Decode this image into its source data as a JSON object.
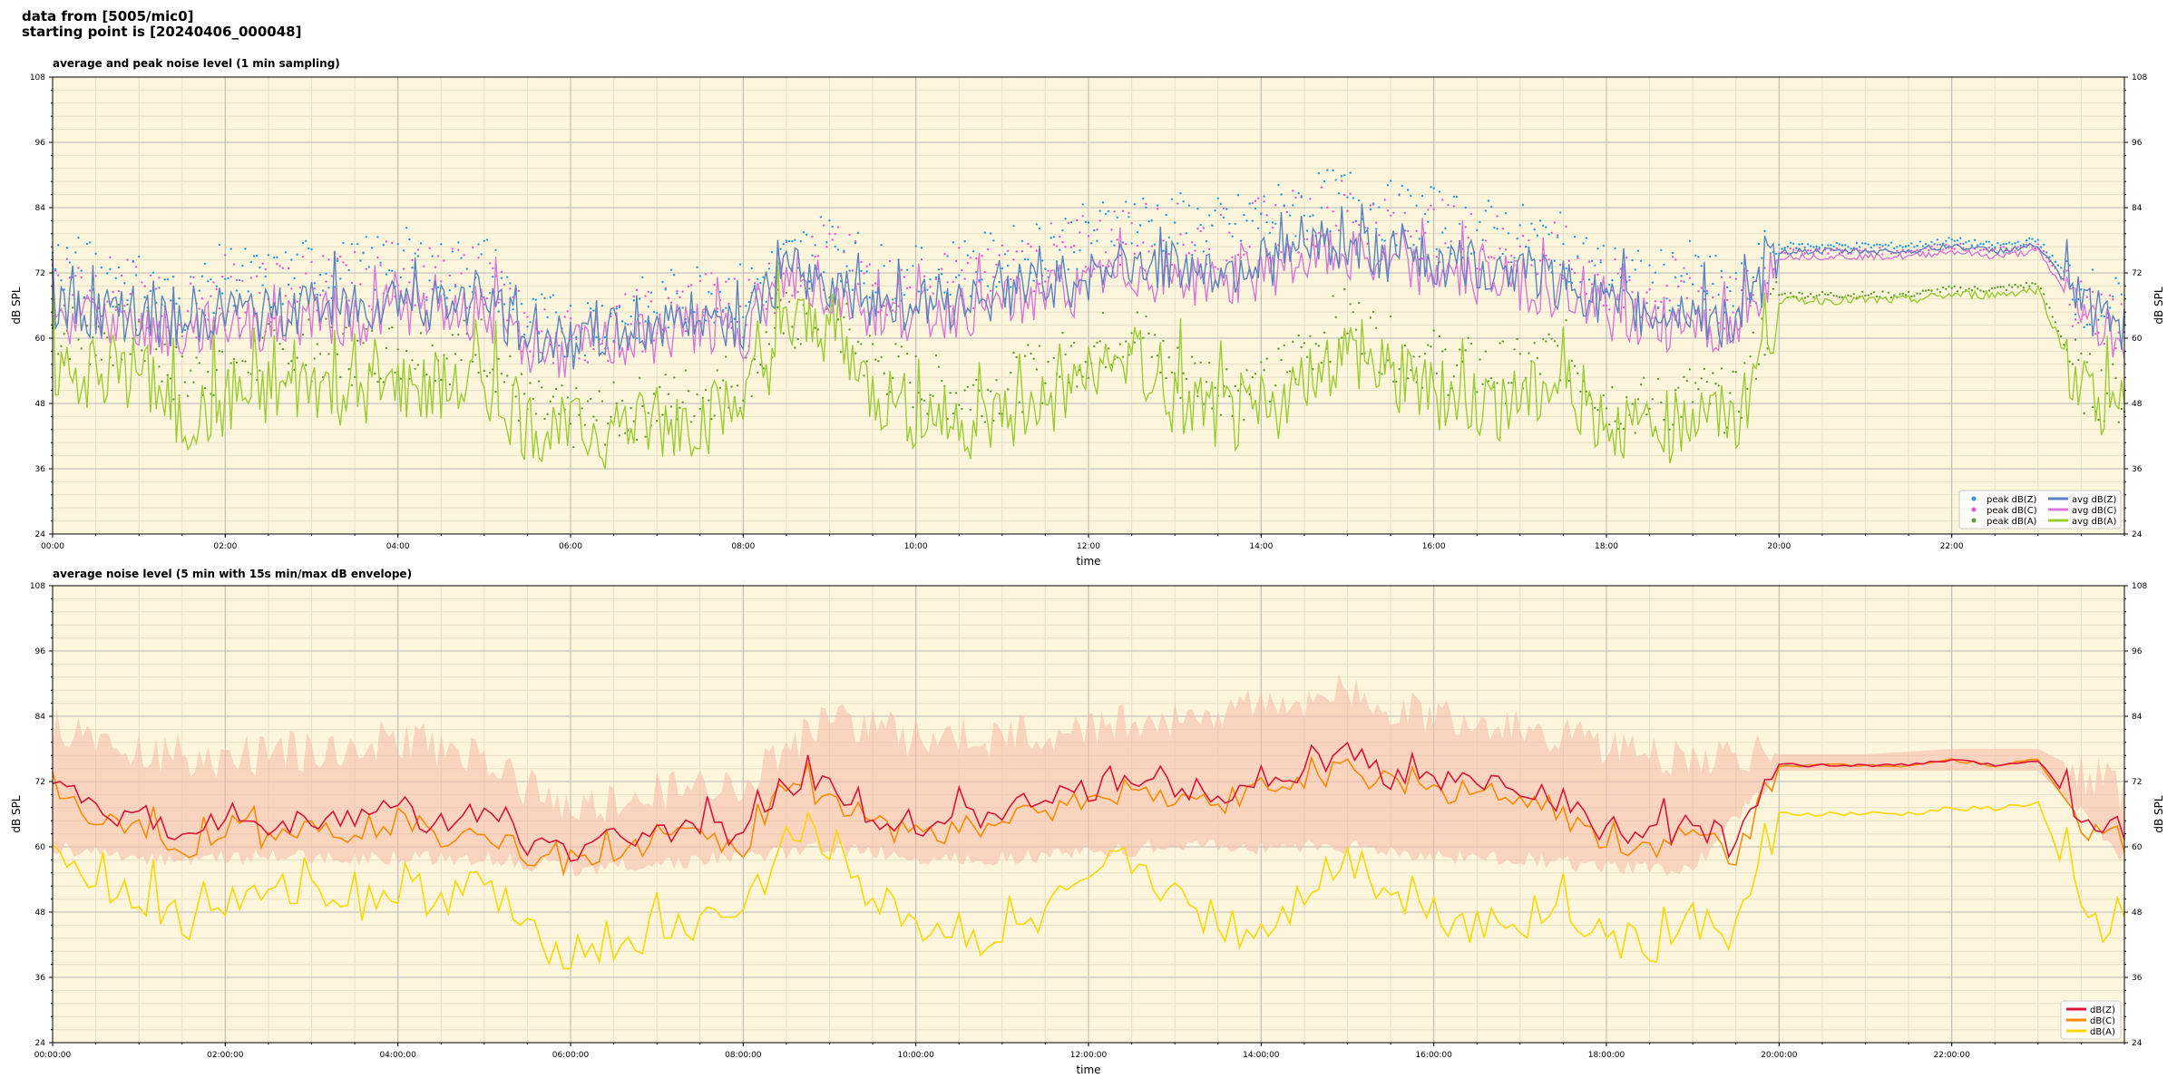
{
  "header": {
    "line1": "data from [5005/mic0]",
    "line2": "starting point is [20240406_000048]"
  },
  "colors": {
    "plot_bg": "#fdf6dc",
    "grid_major": "#b8b8b8",
    "grid_minor": "#e7dfc6",
    "peak_z": "#1f9de0",
    "peak_c": "#f050d8",
    "peak_a": "#5c9e30",
    "avg_z": "#5a84c0",
    "avg_c": "#d878d8",
    "avg_a": "#9acd32",
    "env": "#f6b8a8",
    "dbz": "#dc143c",
    "dbc": "#ff8c00",
    "dba": "#ffd700"
  },
  "chart_data": [
    {
      "type": "line",
      "title": "average and peak noise level (1 min sampling)",
      "xlabel": "time",
      "ylabel": "dB SPL",
      "xlim": [
        0,
        24
      ],
      "ylim": [
        24,
        108
      ],
      "x_ticks": [
        "00:00",
        "02:00",
        "04:00",
        "06:00",
        "08:00",
        "10:00",
        "12:00",
        "14:00",
        "16:00",
        "18:00",
        "20:00",
        "22:00"
      ],
      "y_ticks": [
        "24",
        "36",
        "48",
        "60",
        "72",
        "84",
        "96",
        "108"
      ],
      "grid": true,
      "legend_position": "lower-right",
      "legend": [
        "peak dB(Z)",
        "peak dB(C)",
        "peak dB(A)",
        "avg dB(Z)",
        "avg dB(C)",
        "avg dB(A)"
      ],
      "series": [
        {
          "name": "avg dB(Z)",
          "x": [
            0,
            0.5,
            1,
            1.5,
            2,
            2.5,
            3,
            3.5,
            4,
            4.5,
            5,
            5.5,
            6,
            6.5,
            7,
            7.5,
            8,
            8.5,
            9,
            9.5,
            10,
            10.5,
            11,
            11.5,
            12,
            12.5,
            13,
            13.5,
            14,
            14.5,
            15,
            15.5,
            16,
            16.5,
            17,
            17.5,
            18,
            18.5,
            19,
            19.5,
            20,
            20.5,
            21,
            21.5,
            22,
            22.5,
            23,
            23.5,
            24
          ],
          "values": [
            66,
            65,
            64,
            62,
            65,
            64,
            66,
            65,
            68,
            66,
            67,
            60,
            59,
            61,
            62,
            64,
            63,
            72,
            70,
            67,
            66,
            67,
            68,
            70,
            71,
            74,
            73,
            72,
            74,
            76,
            77,
            75,
            74,
            73,
            72,
            70,
            66,
            64,
            65,
            62,
            76,
            76,
            76,
            76,
            77,
            76,
            77,
            66,
            62
          ]
        },
        {
          "name": "avg dB(C)",
          "x": [
            0,
            0.5,
            1,
            1.5,
            2,
            2.5,
            3,
            3.5,
            4,
            4.5,
            5,
            5.5,
            6,
            6.5,
            7,
            7.5,
            8,
            8.5,
            9,
            9.5,
            10,
            10.5,
            11,
            11.5,
            12,
            12.5,
            13,
            13.5,
            14,
            14.5,
            15,
            15.5,
            16,
            16.5,
            17,
            17.5,
            18,
            18.5,
            19,
            19.5,
            20,
            20.5,
            21,
            21.5,
            22,
            22.5,
            23,
            23.5,
            24
          ],
          "values": [
            64,
            63,
            62,
            60,
            63,
            62,
            64,
            63,
            66,
            64,
            65,
            58,
            57,
            59,
            60,
            62,
            61,
            71,
            68,
            65,
            64,
            65,
            66,
            68,
            69,
            72,
            71,
            70,
            72,
            74,
            75,
            73,
            72,
            71,
            70,
            68,
            64,
            62,
            63,
            60,
            75,
            75,
            75,
            75,
            76,
            75,
            76,
            64,
            60
          ]
        },
        {
          "name": "avg dB(A)",
          "x": [
            0,
            0.5,
            1,
            1.5,
            2,
            2.5,
            3,
            3.5,
            4,
            4.5,
            5,
            5.5,
            6,
            6.5,
            7,
            7.5,
            8,
            8.5,
            9,
            9.5,
            10,
            10.5,
            11,
            11.5,
            12,
            12.5,
            13,
            13.5,
            14,
            14.5,
            15,
            15.5,
            16,
            16.5,
            17,
            17.5,
            18,
            18.5,
            19,
            19.5,
            20,
            20.5,
            21,
            21.5,
            22,
            22.5,
            23,
            23.5,
            24
          ],
          "values": [
            55,
            52,
            54,
            44,
            48,
            50,
            52,
            50,
            51,
            50,
            52,
            44,
            42,
            43,
            44,
            45,
            48,
            62,
            62,
            50,
            46,
            44,
            45,
            48,
            52,
            56,
            48,
            46,
            44,
            52,
            58,
            52,
            50,
            48,
            48,
            52,
            44,
            42,
            46,
            44,
            67,
            67,
            67,
            67,
            68,
            68,
            69,
            50,
            46
          ]
        },
        {
          "name": "peak dB(Z)",
          "x": [
            0,
            0.5,
            1,
            1.5,
            2,
            2.5,
            3,
            3.5,
            4,
            4.5,
            5,
            5.5,
            6,
            6.5,
            7,
            7.5,
            8,
            8.5,
            9,
            9.5,
            10,
            10.5,
            11,
            11.5,
            12,
            12.5,
            13,
            13.5,
            14,
            14.5,
            15,
            15.5,
            16,
            16.5,
            17,
            17.5,
            18,
            18.5,
            19,
            19.5,
            20,
            20.5,
            21,
            21.5,
            22,
            22.5,
            23,
            23.5,
            24
          ],
          "values": [
            74,
            72,
            70,
            66,
            72,
            70,
            73,
            72,
            75,
            72,
            74,
            63,
            62,
            64,
            66,
            69,
            68,
            74,
            78,
            72,
            71,
            73,
            74,
            77,
            79,
            82,
            81,
            80,
            82,
            84,
            86,
            83,
            82,
            80,
            79,
            77,
            72,
            70,
            72,
            67,
            77,
            77,
            77,
            77,
            78,
            77,
            78,
            68,
            65
          ]
        },
        {
          "name": "peak dB(C)",
          "x": [
            0,
            0.5,
            1,
            1.5,
            2,
            2.5,
            3,
            3.5,
            4,
            4.5,
            5,
            5.5,
            6,
            6.5,
            7,
            7.5,
            8,
            8.5,
            9,
            9.5,
            10,
            10.5,
            11,
            11.5,
            12,
            12.5,
            13,
            13.5,
            14,
            14.5,
            15,
            15.5,
            16,
            16.5,
            17,
            17.5,
            18,
            18.5,
            19,
            19.5,
            20,
            20.5,
            21,
            21.5,
            22,
            22.5,
            23,
            23.5,
            24
          ],
          "values": [
            72,
            70,
            68,
            64,
            70,
            68,
            71,
            70,
            73,
            70,
            72,
            61,
            60,
            62,
            64,
            67,
            66,
            72,
            76,
            70,
            69,
            71,
            72,
            75,
            77,
            80,
            79,
            78,
            80,
            82,
            84,
            81,
            80,
            78,
            77,
            75,
            70,
            68,
            70,
            65,
            76,
            76,
            76,
            76,
            77,
            76,
            77,
            66,
            63
          ]
        },
        {
          "name": "peak dB(A)",
          "x": [
            0,
            0.5,
            1,
            1.5,
            2,
            2.5,
            3,
            3.5,
            4,
            4.5,
            5,
            5.5,
            6,
            6.5,
            7,
            7.5,
            8,
            8.5,
            9,
            9.5,
            10,
            10.5,
            11,
            11.5,
            12,
            12.5,
            13,
            13.5,
            14,
            14.5,
            15,
            15.5,
            16,
            16.5,
            17,
            17.5,
            18,
            18.5,
            19,
            19.5,
            20,
            20.5,
            21,
            21.5,
            22,
            22.5,
            23,
            23.5,
            24
          ],
          "values": [
            62,
            60,
            61,
            52,
            56,
            57,
            58,
            57,
            58,
            57,
            59,
            47,
            45,
            46,
            48,
            50,
            53,
            63,
            64,
            56,
            52,
            50,
            51,
            54,
            58,
            62,
            54,
            52,
            50,
            58,
            64,
            58,
            56,
            54,
            54,
            58,
            49,
            47,
            50,
            48,
            68,
            68,
            68,
            68,
            69,
            69,
            70,
            52,
            49
          ]
        }
      ]
    },
    {
      "type": "line",
      "title": "average noise level (5 min with 15s min/max dB envelope)",
      "xlabel": "time",
      "ylabel": "dB SPL",
      "xlim": [
        0,
        24
      ],
      "ylim": [
        24,
        108
      ],
      "x_ticks": [
        "00:00:00",
        "02:00:00",
        "04:00:00",
        "06:00:00",
        "08:00:00",
        "10:00:00",
        "12:00:00",
        "14:00:00",
        "16:00:00",
        "18:00:00",
        "20:00:00",
        "22:00:00"
      ],
      "y_ticks": [
        "24",
        "36",
        "48",
        "60",
        "72",
        "84",
        "96",
        "108"
      ],
      "grid": true,
      "legend_position": "lower-right",
      "legend": [
        "dB(Z)",
        "dB(C)",
        "dB(A)"
      ],
      "series": [
        {
          "name": "dB(Z)",
          "x": [
            0,
            0.5,
            1,
            1.5,
            2,
            2.5,
            3,
            3.5,
            4,
            4.5,
            5,
            5.5,
            6,
            6.5,
            7,
            7.5,
            8,
            8.5,
            9,
            9.5,
            10,
            10.5,
            11,
            11.5,
            12,
            12.5,
            13,
            13.5,
            14,
            14.5,
            15,
            15.5,
            16,
            16.5,
            17,
            17.5,
            18,
            18.5,
            19,
            19.5,
            20,
            20.5,
            21,
            21.5,
            22,
            22.5,
            23,
            23.5,
            24
          ],
          "values": [
            72,
            66,
            66,
            61,
            66,
            64,
            66,
            65,
            67,
            64,
            66,
            60,
            59,
            61,
            63,
            64,
            62,
            72,
            72,
            66,
            64,
            65,
            66,
            69,
            70,
            73,
            71,
            70,
            72,
            74,
            77,
            73,
            72,
            72,
            71,
            68,
            63,
            62,
            64,
            60,
            75,
            75,
            75,
            75,
            76,
            75,
            76,
            66,
            62
          ]
        },
        {
          "name": "dB(C)",
          "x": [
            0,
            0.5,
            1,
            1.5,
            2,
            2.5,
            3,
            3.5,
            4,
            4.5,
            5,
            5.5,
            6,
            6.5,
            7,
            7.5,
            8,
            8.5,
            9,
            9.5,
            10,
            10.5,
            11,
            11.5,
            12,
            12.5,
            13,
            13.5,
            14,
            14.5,
            15,
            15.5,
            16,
            16.5,
            17,
            17.5,
            18,
            18.5,
            19,
            19.5,
            20,
            20.5,
            21,
            21.5,
            22,
            22.5,
            23,
            23.5,
            24
          ],
          "values": [
            70,
            64,
            64,
            59,
            64,
            62,
            64,
            63,
            65,
            62,
            64,
            58,
            57,
            59,
            61,
            62,
            60,
            71,
            70,
            64,
            62,
            63,
            64,
            67,
            68,
            71,
            69,
            68,
            70,
            72,
            75,
            71,
            70,
            70,
            69,
            66,
            61,
            60,
            62,
            58,
            75,
            75,
            75,
            75,
            76,
            75,
            76,
            64,
            60
          ]
        },
        {
          "name": "dB(A)",
          "x": [
            0,
            0.5,
            1,
            1.5,
            2,
            2.5,
            3,
            3.5,
            4,
            4.5,
            5,
            5.5,
            6,
            6.5,
            7,
            7.5,
            8,
            8.5,
            9,
            9.5,
            10,
            10.5,
            11,
            11.5,
            12,
            12.5,
            13,
            13.5,
            14,
            14.5,
            15,
            15.5,
            16,
            16.5,
            17,
            17.5,
            18,
            18.5,
            19,
            19.5,
            20,
            20.5,
            21,
            21.5,
            22,
            22.5,
            23,
            23.5,
            24
          ],
          "values": [
            60,
            54,
            52,
            46,
            50,
            50,
            54,
            50,
            52,
            51,
            53,
            43,
            41,
            42,
            44,
            46,
            48,
            61,
            61,
            50,
            46,
            44,
            43,
            47,
            51,
            58,
            50,
            46,
            44,
            52,
            58,
            52,
            48,
            46,
            46,
            50,
            43,
            41,
            46,
            44,
            66,
            66,
            66,
            66,
            67,
            67,
            68,
            48,
            44
          ]
        },
        {
          "name": "envelope max",
          "x": [
            0,
            1,
            2,
            3,
            4,
            5,
            6,
            7,
            8,
            9,
            10,
            11,
            12,
            13,
            14,
            15,
            16,
            17,
            18,
            19,
            20,
            21,
            22,
            23,
            24
          ],
          "values": [
            82,
            78,
            76,
            78,
            80,
            76,
            66,
            70,
            72,
            84,
            80,
            80,
            82,
            84,
            86,
            88,
            84,
            82,
            78,
            76,
            77,
            77,
            78,
            78,
            70
          ]
        },
        {
          "name": "envelope min",
          "x": [
            0,
            1,
            2,
            3,
            4,
            5,
            6,
            7,
            8,
            9,
            10,
            11,
            12,
            13,
            14,
            15,
            16,
            17,
            18,
            19,
            20,
            21,
            22,
            23,
            24
          ],
          "values": [
            60,
            58,
            58,
            58,
            58,
            58,
            56,
            57,
            58,
            60,
            58,
            58,
            59,
            60,
            60,
            60,
            58,
            58,
            56,
            56,
            74,
            74,
            74,
            74,
            58
          ]
        }
      ]
    }
  ]
}
